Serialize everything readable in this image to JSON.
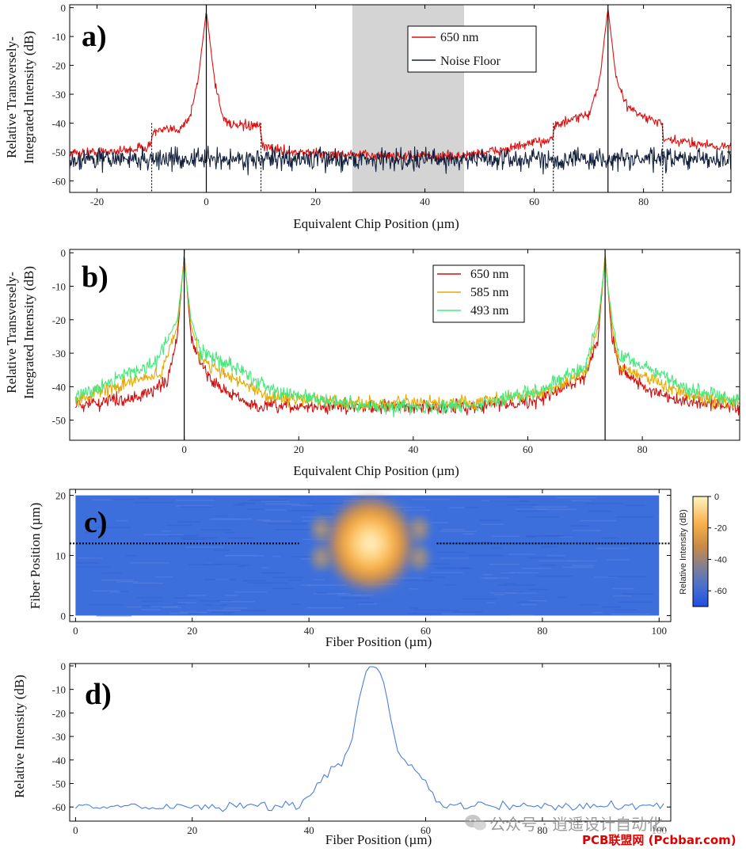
{
  "chart_data": [
    {
      "panel": "a)",
      "type": "line",
      "xlabel": "Equivalent Chip Position (µm)",
      "ylabel_line1": "Relative Transversely-",
      "ylabel_line2": "Integrated Intensity (dB)",
      "xlim": [
        -25,
        96
      ],
      "ylim": [
        -64,
        1
      ],
      "xticks": [
        -20,
        0,
        20,
        40,
        60,
        80
      ],
      "yticks": [
        0,
        -10,
        -20,
        -30,
        -40,
        -50,
        -60
      ],
      "shaded_region": [
        26.5,
        46.5
      ],
      "solid_vlines": [
        0,
        73.5
      ],
      "dotted_vlines": [
        -10,
        10,
        63.5,
        83.5
      ],
      "legend": [
        "650 nm",
        "Noise Floor"
      ],
      "series": [
        {
          "name": "650 nm",
          "color": "#e01010",
          "profile": [
            [
              -25,
              -50.5
            ],
            [
              -15,
              -49.5
            ],
            [
              -10.2,
              -48
            ],
            [
              -9.8,
              -43
            ],
            [
              -5,
              -42
            ],
            [
              -3,
              -38
            ],
            [
              -1.5,
              -25
            ],
            [
              0,
              -1
            ],
            [
              1.5,
              -25
            ],
            [
              3,
              -38
            ],
            [
              5,
              -41
            ],
            [
              9.8,
              -41
            ],
            [
              10.2,
              -48
            ],
            [
              15,
              -50
            ],
            [
              26,
              -51
            ],
            [
              46,
              -51.5
            ],
            [
              55,
              -49
            ],
            [
              62,
              -46
            ],
            [
              63.3,
              -45
            ],
            [
              63.7,
              -41
            ],
            [
              70,
              -37
            ],
            [
              72,
              -25
            ],
            [
              73.5,
              0
            ],
            [
              75,
              -25
            ],
            [
              77,
              -34
            ],
            [
              80,
              -38
            ],
            [
              83.3,
              -40
            ],
            [
              83.7,
              -46
            ],
            [
              90,
              -47
            ],
            [
              96,
              -48.5
            ]
          ],
          "noise": 1.2
        },
        {
          "name": "Noise Floor",
          "color": "#14213d",
          "profile": [
            [
              -25,
              -52.5
            ],
            [
              96,
              -52.5
            ]
          ],
          "noise": 2.6
        }
      ]
    },
    {
      "panel": "b)",
      "type": "line",
      "xlabel": "Equivalent Chip Position (µm)",
      "ylabel_line1": "Relative Transversely-",
      "ylabel_line2": "Integrated Intensity (dB)",
      "xlim": [
        -20,
        97
      ],
      "ylim": [
        -56,
        1
      ],
      "xticks": [
        0,
        20,
        40,
        60,
        80
      ],
      "yticks": [
        0,
        -10,
        -20,
        -30,
        -40,
        -50
      ],
      "solid_vlines": [
        0,
        73.5
      ],
      "legend": [
        "650 nm",
        "585 nm",
        "493 nm"
      ],
      "series": [
        {
          "name": "650 nm",
          "color": "#d01010",
          "profile": [
            [
              -19,
              -45.5
            ],
            [
              -8,
              -43
            ],
            [
              -3,
              -39
            ],
            [
              -1.2,
              -25
            ],
            [
              0,
              -0.5
            ],
            [
              1.2,
              -25
            ],
            [
              3,
              -34
            ],
            [
              6,
              -40
            ],
            [
              12,
              -46
            ],
            [
              30,
              -46
            ],
            [
              50,
              -46
            ],
            [
              62,
              -44
            ],
            [
              70,
              -37
            ],
            [
              72.3,
              -25
            ],
            [
              73.5,
              -0.5
            ],
            [
              74.7,
              -25
            ],
            [
              76,
              -34
            ],
            [
              80,
              -40
            ],
            [
              85,
              -44
            ],
            [
              97,
              -46
            ]
          ],
          "noise": 1.4
        },
        {
          "name": "585 nm",
          "color": "#e8a800",
          "profile": [
            [
              -19,
              -44
            ],
            [
              -10,
              -39
            ],
            [
              -4,
              -36
            ],
            [
              -1.2,
              -22
            ],
            [
              0,
              -1
            ],
            [
              1.2,
              -22
            ],
            [
              3,
              -32
            ],
            [
              8,
              -37
            ],
            [
              15,
              -43
            ],
            [
              30,
              -45
            ],
            [
              50,
              -45
            ],
            [
              62,
              -42
            ],
            [
              70,
              -36
            ],
            [
              72.3,
              -22
            ],
            [
              73.5,
              -1
            ],
            [
              74.7,
              -22
            ],
            [
              76,
              -34
            ],
            [
              82,
              -38
            ],
            [
              88,
              -43
            ],
            [
              97,
              -45
            ]
          ],
          "noise": 1.4
        },
        {
          "name": "493 nm",
          "color": "#46e87a",
          "profile": [
            [
              -19,
              -43
            ],
            [
              -10,
              -36
            ],
            [
              -5,
              -33
            ],
            [
              -1.2,
              -20
            ],
            [
              0,
              -3
            ],
            [
              1.2,
              -20
            ],
            [
              3,
              -30
            ],
            [
              8,
              -33
            ],
            [
              15,
              -41
            ],
            [
              30,
              -46
            ],
            [
              50,
              -46
            ],
            [
              62,
              -41
            ],
            [
              70,
              -34
            ],
            [
              72.3,
              -20
            ],
            [
              73.5,
              -3
            ],
            [
              74.7,
              -20
            ],
            [
              76,
              -31
            ],
            [
              82,
              -35
            ],
            [
              88,
              -41
            ],
            [
              97,
              -44
            ]
          ],
          "noise": 1.6
        }
      ]
    },
    {
      "panel": "c)",
      "type": "heatmap",
      "xlabel": "Fiber Position (µm)",
      "ylabel": "Fiber Position (µm)",
      "xlim": [
        -1,
        102
      ],
      "ylim": [
        -1,
        21
      ],
      "xticks": [
        0,
        20,
        40,
        60,
        80,
        100
      ],
      "yticks": [
        0,
        10,
        20
      ],
      "data_extent_x": [
        0,
        100
      ],
      "data_extent_y": [
        0,
        20
      ],
      "spot_center": [
        50.5,
        12
      ],
      "dashed_line_y": 12,
      "colorbar_label": "Relative Intensity (dB)",
      "colorbar_ticks": [
        0,
        -20,
        -40,
        -60
      ],
      "colorbar_range": [
        -70,
        0
      ]
    },
    {
      "panel": "d)",
      "type": "line",
      "xlabel": "Fiber Position (µm)",
      "ylabel": "Relative  Intensity (dB)",
      "xlim": [
        -1,
        102
      ],
      "ylim": [
        -66,
        1
      ],
      "xticks": [
        0,
        20,
        40,
        60,
        80,
        100
      ],
      "yticks": [
        0,
        -10,
        -20,
        -30,
        -40,
        -50,
        -60
      ],
      "series": [
        {
          "name": "profile",
          "color": "#4a7fdc",
          "profile": [
            [
              0,
              -59.5
            ],
            [
              38.5,
              -59.5
            ],
            [
              40,
              -55
            ],
            [
              42,
              -48
            ],
            [
              44,
              -44
            ],
            [
              46,
              -40
            ],
            [
              47,
              -33
            ],
            [
              48,
              -22
            ],
            [
              49,
              -9
            ],
            [
              50,
              -1
            ],
            [
              51,
              0
            ],
            [
              52,
              -1
            ],
            [
              53,
              -9
            ],
            [
              54,
              -22
            ],
            [
              55,
              -33
            ],
            [
              56,
              -40
            ],
            [
              58,
              -45
            ],
            [
              60,
              -50
            ],
            [
              62,
              -57
            ],
            [
              63.5,
              -59.5
            ],
            [
              101,
              -59.5
            ]
          ],
          "noise": 1.5
        }
      ]
    }
  ],
  "watermark": {
    "icon": "wechat-icon",
    "text": "公众号 · 逍遥设计自动化",
    "site": "PCB联盟网 (Pcbbar.com)"
  }
}
